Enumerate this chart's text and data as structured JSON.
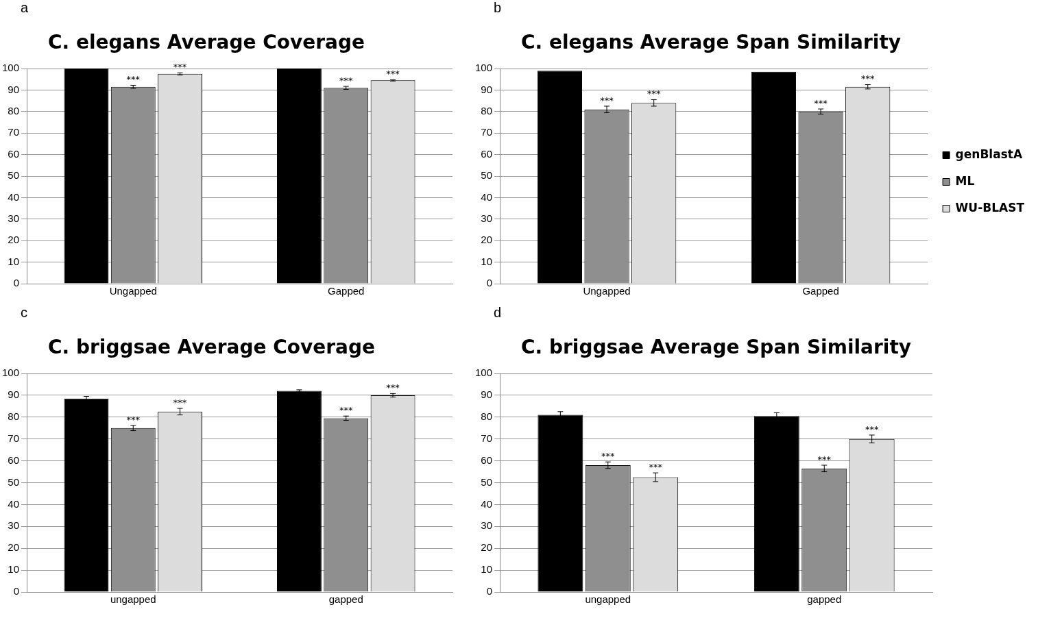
{
  "chart_data": [
    {
      "type": "bar",
      "title": "C. elegans Average Coverage",
      "annotations": [
        "a"
      ],
      "categories": [
        "Ungapped",
        "Gapped"
      ],
      "ylim": [
        0,
        100
      ],
      "yticks": [
        0,
        10,
        20,
        30,
        40,
        50,
        60,
        70,
        80,
        90,
        100
      ],
      "grid": "y",
      "legend": false,
      "series": [
        {
          "color": "#000000",
          "values": [
            100,
            100
          ]
        },
        {
          "color": "#8f8f8f",
          "values": [
            91.5,
            91
          ],
          "errors": [
            0.7,
            0.7
          ],
          "value_labels": [
            "***",
            "***"
          ]
        },
        {
          "color": "#dcdcdc",
          "values": [
            97.5,
            94.5
          ],
          "errors": [
            0.5,
            0.3
          ],
          "value_labels": [
            "***",
            "***"
          ]
        }
      ]
    },
    {
      "type": "bar",
      "title": "C. elegans Average Span Similarity",
      "annotations": [
        "b"
      ],
      "categories": [
        "Ungapped",
        "Gapped"
      ],
      "ylim": [
        0,
        100
      ],
      "yticks": [
        0,
        10,
        20,
        30,
        40,
        50,
        60,
        70,
        80,
        90,
        100
      ],
      "grid": "y",
      "legend": "right",
      "series": [
        {
          "name": "genBlastA",
          "color": "#000000",
          "values": [
            99,
            98.5
          ]
        },
        {
          "name": "ML",
          "color": "#8f8f8f",
          "values": [
            81,
            80
          ],
          "errors": [
            1.5,
            1.2
          ],
          "value_labels": [
            "***",
            "***"
          ]
        },
        {
          "name": "WU-BLAST",
          "color": "#dcdcdc",
          "values": [
            84,
            91.5
          ],
          "errors": [
            1.5,
            1
          ],
          "value_labels": [
            "***",
            "***"
          ]
        }
      ]
    },
    {
      "type": "bar",
      "title": "C. briggsae Average Coverage",
      "annotations": [
        "c"
      ],
      "categories": [
        "ungapped",
        "gapped"
      ],
      "ylim": [
        0,
        100
      ],
      "yticks": [
        0,
        10,
        20,
        30,
        40,
        50,
        60,
        70,
        80,
        90,
        100
      ],
      "grid": "y",
      "legend": false,
      "series": [
        {
          "color": "#000000",
          "values": [
            88.5,
            92
          ],
          "errors": [
            1,
            0.5
          ]
        },
        {
          "color": "#8f8f8f",
          "values": [
            75,
            79.5
          ],
          "errors": [
            1.2,
            1
          ],
          "value_labels": [
            "***",
            "***"
          ]
        },
        {
          "color": "#dcdcdc",
          "values": [
            82.5,
            90
          ],
          "errors": [
            1.5,
            0.8
          ],
          "value_labels": [
            "***",
            "***"
          ]
        }
      ]
    },
    {
      "type": "bar",
      "title": "C. briggsae Average Span Similarity",
      "annotations": [
        "d"
      ],
      "categories": [
        "ungapped",
        "gapped"
      ],
      "ylim": [
        0,
        100
      ],
      "yticks": [
        0,
        10,
        20,
        30,
        40,
        50,
        60,
        70,
        80,
        90,
        100
      ],
      "grid": "y",
      "legend": false,
      "series": [
        {
          "color": "#000000",
          "values": [
            81,
            80.5
          ],
          "errors": [
            1.5,
            1.5
          ]
        },
        {
          "color": "#8f8f8f",
          "values": [
            58,
            56.5
          ],
          "errors": [
            1.5,
            1.5
          ],
          "value_labels": [
            "***",
            "***"
          ]
        },
        {
          "color": "#dcdcdc",
          "values": [
            52.5,
            70
          ],
          "errors": [
            2,
            1.8
          ],
          "value_labels": [
            "***",
            "***"
          ]
        }
      ]
    }
  ]
}
